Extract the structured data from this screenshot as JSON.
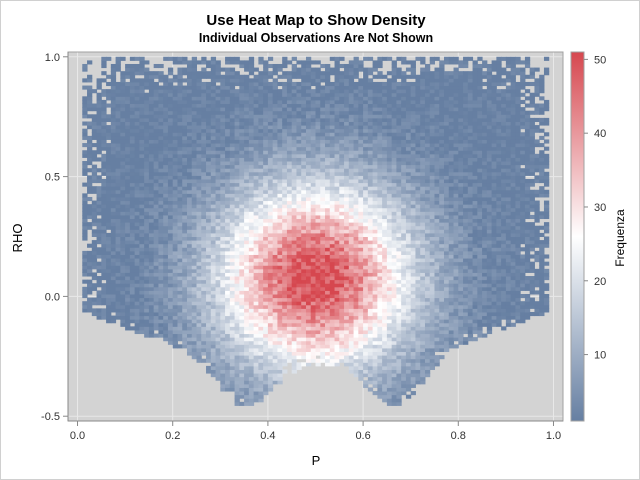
{
  "chart_data": {
    "type": "heatmap",
    "title": "Use Heat Map to Show Density",
    "subtitle": "Individual Observations Are Not Shown",
    "xlabel": "P",
    "ylabel": "RHO",
    "xlim": [
      -0.02,
      1.02
    ],
    "ylim": [
      -0.52,
      1.02
    ],
    "xticks": [
      0.0,
      0.2,
      0.4,
      0.6,
      0.8,
      1.0
    ],
    "xtick_labels": [
      "0.0",
      "0.2",
      "0.4",
      "0.6",
      "0.8",
      "1.0"
    ],
    "yticks": [
      -0.5,
      0.0,
      0.5,
      1.0
    ],
    "ytick_labels": [
      "-0.5",
      "0.0",
      "0.5",
      "1.0"
    ],
    "colorbar": {
      "label": "Frequenza",
      "range": [
        1,
        51
      ],
      "ticks": [
        10,
        20,
        30,
        40,
        50
      ],
      "tick_labels": [
        "10",
        "20",
        "30",
        "40",
        "50"
      ],
      "colors": [
        "#667fa2",
        "#ffffff",
        "#d6474f"
      ]
    },
    "grid": true,
    "bins": {
      "nx": 100,
      "ny": 100
    },
    "density_peak": {
      "p": 0.5,
      "rho": 0.08,
      "max_frequency": 51
    },
    "background_color": "#d3d3d3"
  }
}
